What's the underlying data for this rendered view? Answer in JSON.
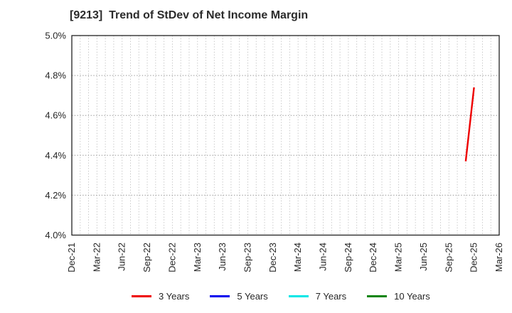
{
  "chart_data": {
    "type": "line",
    "title": "[9213]  Trend of StDev of Net Income Margin",
    "ticker": "9213",
    "x_tick_labels": [
      "Dec-21",
      "Mar-22",
      "Jun-22",
      "Sep-22",
      "Dec-22",
      "Mar-23",
      "Jun-23",
      "Sep-23",
      "Dec-23",
      "Mar-24",
      "Jun-24",
      "Sep-24",
      "Dec-24",
      "Mar-25",
      "Jun-25",
      "Sep-25",
      "Dec-25",
      "Mar-26"
    ],
    "x_months_per_tick": 3,
    "x_total_month_intervals": 51,
    "ylim": [
      4.0,
      5.0
    ],
    "y_ticks": [
      5.0,
      4.8,
      4.6,
      4.4,
      4.2,
      4.0
    ],
    "y_tick_suffix": "%",
    "grid": true,
    "legend_position": "bottom",
    "axis_text_color": "#262626",
    "border_color": "#222222",
    "gridline_color_vertical": "#bdbdbd",
    "gridline_color_horizontal": "#8f8f8f",
    "series": [
      {
        "name": "3 Years",
        "color": "#ee0000",
        "points": [
          {
            "month": "Nov-25",
            "month_index": 47,
            "value": 4.37
          },
          {
            "month": "Dec-25",
            "month_index": 48,
            "value": 4.74
          }
        ]
      },
      {
        "name": "5 Years",
        "color": "#0000ee",
        "points": []
      },
      {
        "name": "7 Years",
        "color": "#00e6e6",
        "points": []
      },
      {
        "name": "10 Years",
        "color": "#0a840a",
        "points": []
      }
    ]
  }
}
